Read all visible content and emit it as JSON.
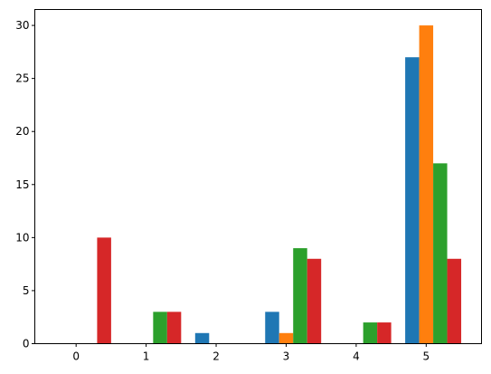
{
  "chart_data": {
    "type": "bar",
    "x": [
      0,
      1,
      2,
      3,
      4,
      5
    ],
    "series": [
      {
        "color": "#1f77b4",
        "values": [
          0,
          0,
          1,
          3,
          0,
          27
        ]
      },
      {
        "color": "#ff7f0e",
        "values": [
          0,
          0,
          0,
          1,
          0,
          30
        ]
      },
      {
        "color": "#2ca02c",
        "values": [
          0,
          3,
          0,
          9,
          2,
          17
        ]
      },
      {
        "color": "#d62728",
        "values": [
          10,
          3,
          0,
          8,
          2,
          8
        ]
      }
    ],
    "xlim": [
      -0.59,
      5.79
    ],
    "xticks": [
      0,
      1,
      2,
      3,
      4,
      5
    ],
    "ylim": [
      0,
      31.5
    ],
    "yticks": [
      0,
      5,
      10,
      15,
      20,
      25,
      30
    ]
  }
}
